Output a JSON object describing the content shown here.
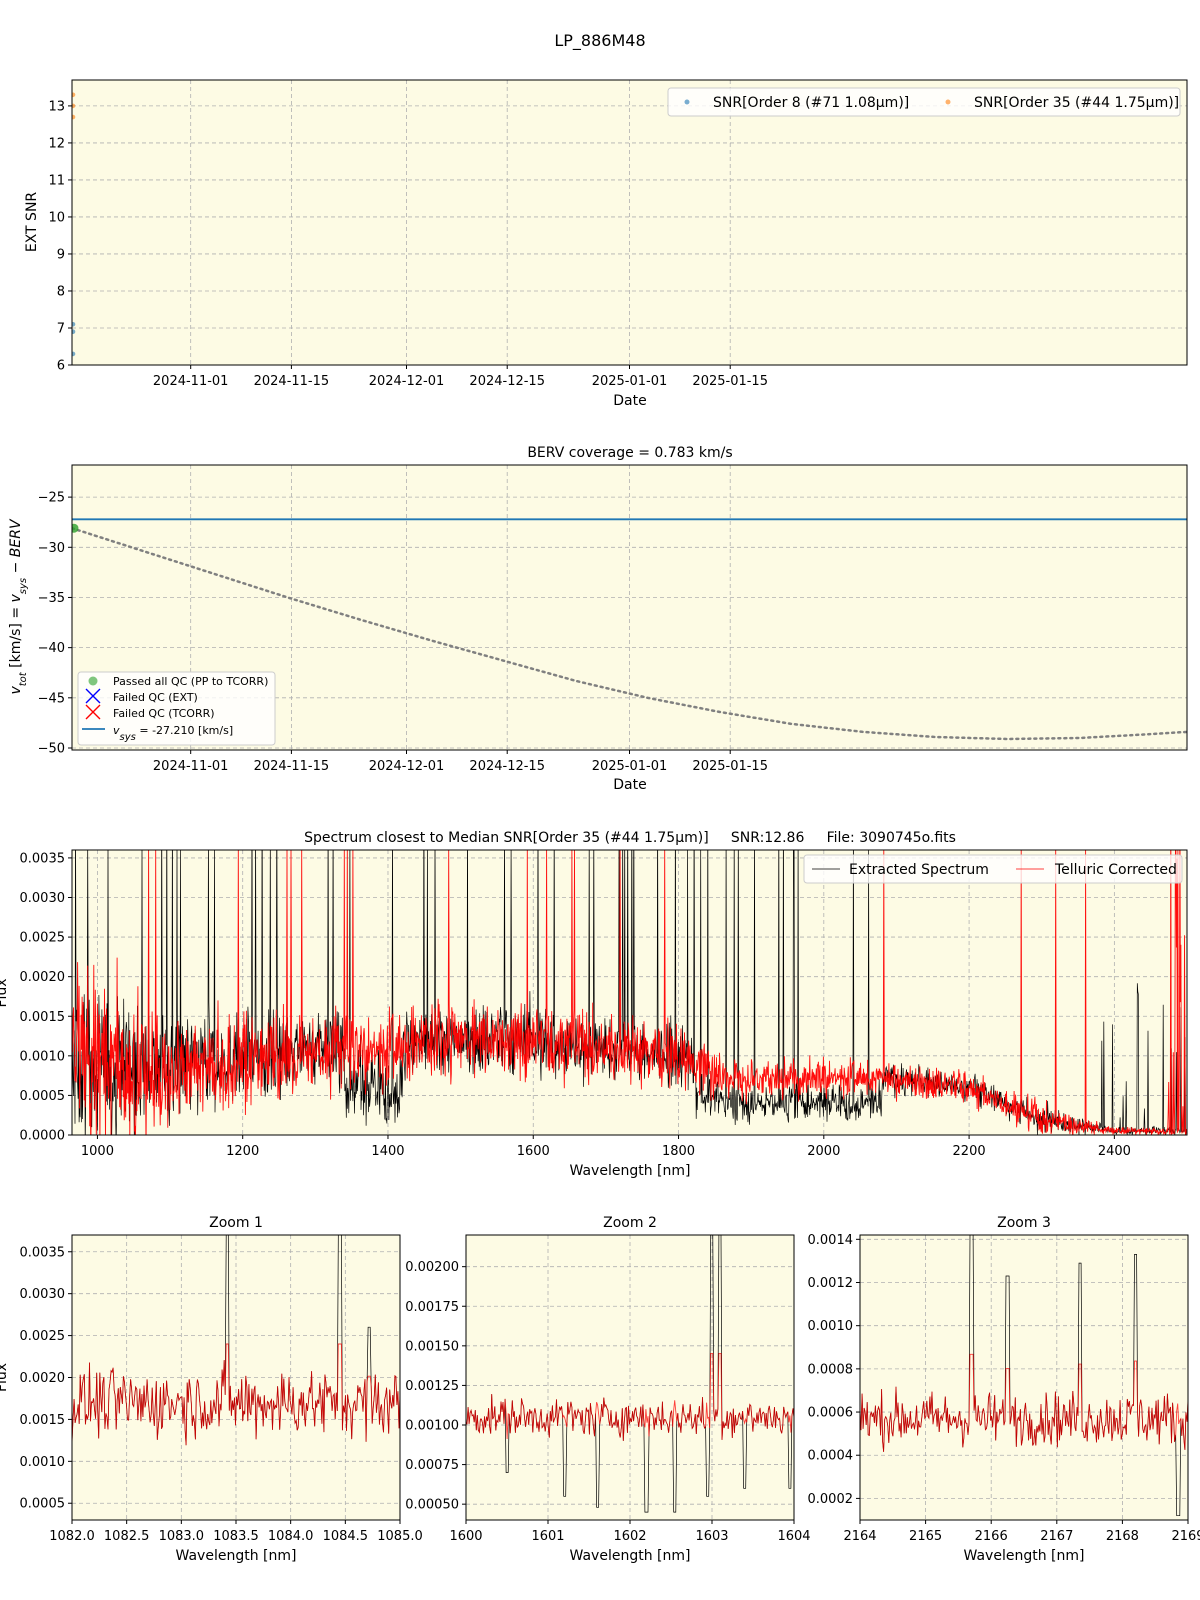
{
  "figure": {
    "suptitle": "LP_886M48"
  },
  "colors": {
    "panel_bg": "#fdfbe4",
    "snr8": "#1f77b4",
    "snr35": "#ff7f0e",
    "vsys_line": "#1f77b4",
    "pass": "#2ca02c",
    "fail_ext": "#0000ff",
    "fail_tcorr": "#ff0000",
    "berv_curve": "#808080",
    "extracted": "#000000",
    "telluric": "#ff0000"
  },
  "chart_data": [
    {
      "id": "snr",
      "type": "scatter",
      "title": "",
      "xlabel": "Date",
      "ylabel": "EXT SNR",
      "xlim_days": [
        0,
        155
      ],
      "ylim": [
        6,
        13.7
      ],
      "yticks": [
        6,
        7,
        8,
        9,
        10,
        11,
        12,
        13
      ],
      "xticks": [
        {
          "day": 16.5,
          "label": "2024-11-01"
        },
        {
          "day": 30.5,
          "label": "2024-11-15"
        },
        {
          "day": 46.5,
          "label": "2024-12-01"
        },
        {
          "day": 60.5,
          "label": "2024-12-15"
        },
        {
          "day": 77.5,
          "label": "2025-01-01"
        },
        {
          "day": 91.5,
          "label": "2025-01-15"
        }
      ],
      "series": [
        {
          "name": "SNR[Order 8 (#71 1.08μm)]",
          "points": [
            [
              0,
              6.3
            ],
            [
              0,
              6.9
            ],
            [
              0,
              7.1
            ]
          ]
        },
        {
          "name": "SNR[Order 35 (#44 1.75μm)]",
          "points": [
            [
              0,
              12.7
            ],
            [
              0,
              13.0
            ],
            [
              0,
              13.3
            ]
          ]
        }
      ]
    },
    {
      "id": "berv",
      "type": "line",
      "title": "BERV coverage = 0.783 km/s",
      "xlabel": "Date",
      "ylabel": "v_tot [km/s] = v_sys − BERV",
      "xlim_days": [
        0,
        155
      ],
      "ylim": [
        -50.2,
        -21.8
      ],
      "yticks": [
        -50,
        -45,
        -40,
        -35,
        -30,
        -25
      ],
      "xticks": [
        {
          "day": 16.5,
          "label": "2024-11-01"
        },
        {
          "day": 30.5,
          "label": "2024-11-15"
        },
        {
          "day": 46.5,
          "label": "2024-12-01"
        },
        {
          "day": 60.5,
          "label": "2024-12-15"
        },
        {
          "day": 77.5,
          "label": "2025-01-01"
        },
        {
          "day": 91.5,
          "label": "2025-01-15"
        }
      ],
      "vsys": -27.21,
      "passed_points": [
        [
          0,
          -28.1
        ]
      ],
      "berv_curve": [
        [
          0,
          -28.1
        ],
        [
          10,
          -30.4
        ],
        [
          20,
          -32.7
        ],
        [
          30,
          -35.0
        ],
        [
          40,
          -37.2
        ],
        [
          50,
          -39.3
        ],
        [
          60,
          -41.3
        ],
        [
          70,
          -43.3
        ],
        [
          80,
          -45.0
        ],
        [
          90,
          -46.4
        ],
        [
          100,
          -47.6
        ],
        [
          110,
          -48.4
        ],
        [
          120,
          -48.9
        ],
        [
          130,
          -49.1
        ],
        [
          140,
          -49.0
        ],
        [
          148,
          -48.7
        ],
        [
          155,
          -48.4
        ]
      ],
      "legend": [
        {
          "marker": "circle",
          "label": "Passed all QC (PP to TCORR)"
        },
        {
          "marker": "x-blue",
          "label": "Failed QC (EXT)"
        },
        {
          "marker": "x-red",
          "label": "Failed QC (TCORR)"
        },
        {
          "marker": "line",
          "label": "v_sys = -27.210 [km/s]"
        }
      ]
    },
    {
      "id": "spectrum",
      "type": "line",
      "title": "Spectrum closest to Median SNR[Order 35 (#44 1.75μm)]     SNR:12.86     File: 3090745o.fits",
      "xlabel": "Wavelength [nm]",
      "ylabel": "Flux",
      "xlim": [
        965,
        2500
      ],
      "ylim": [
        0,
        0.0036
      ],
      "xticks": [
        1000,
        1200,
        1400,
        1600,
        1800,
        2000,
        2200,
        2400
      ],
      "yticks": [
        0.0,
        0.0005,
        0.001,
        0.0015,
        0.002,
        0.0025,
        0.003,
        0.0035
      ],
      "ytick_labels": [
        "0.0000",
        "0.0005",
        "0.0010",
        "0.0015",
        "0.0020",
        "0.0025",
        "0.0030",
        "0.0035"
      ],
      "series": [
        {
          "name": "Extracted Spectrum",
          "color": "#000000"
        },
        {
          "name": "Telluric Corrected",
          "color": "#ff0000"
        }
      ],
      "envelope": [
        [
          965,
          0.00095,
          0.0011
        ],
        [
          1100,
          0.0008,
          0.0007
        ],
        [
          1200,
          0.00095,
          0.0006
        ],
        [
          1300,
          0.0011,
          0.0005
        ],
        [
          1400,
          0.0011,
          0.0005
        ],
        [
          1500,
          0.0012,
          0.0005
        ],
        [
          1600,
          0.0012,
          0.0005
        ],
        [
          1700,
          0.0011,
          0.0004
        ],
        [
          1800,
          0.001,
          0.0004
        ],
        [
          1880,
          0.0007,
          0.00025
        ],
        [
          2000,
          0.00075,
          0.00025
        ],
        [
          2100,
          0.0007,
          0.00022
        ],
        [
          2200,
          0.0006,
          0.0002
        ],
        [
          2300,
          0.0002,
          0.0002
        ],
        [
          2400,
          5e-05,
          5e-05
        ],
        [
          2500,
          5e-05,
          5e-05
        ]
      ]
    },
    {
      "id": "zoom1",
      "type": "line",
      "title": "Zoom 1",
      "xlabel": "Wavelength [nm]",
      "ylabel": "Flux",
      "xlim": [
        1082.0,
        1085.0
      ],
      "ylim": [
        0.0003,
        0.0037
      ],
      "xticks": [
        1082.0,
        1082.5,
        1083.0,
        1083.5,
        1084.0,
        1084.5,
        1085.0
      ],
      "xtick_labels": [
        "1082.0",
        "1082.5",
        "1083.0",
        "1083.5",
        "1084.0",
        "1084.5",
        "1085.0"
      ],
      "yticks": [
        0.0005,
        0.001,
        0.0015,
        0.002,
        0.0025,
        0.003,
        0.0035
      ],
      "ytick_labels": [
        "0.0005",
        "0.0010",
        "0.0015",
        "0.0020",
        "0.0025",
        "0.0030",
        "0.0035"
      ],
      "base": 0.0017,
      "noise": 0.0004,
      "peaks": [
        [
          1083.42,
          0.0037
        ],
        [
          1084.45,
          0.0037
        ],
        [
          1084.72,
          0.0026
        ]
      ],
      "dips": []
    },
    {
      "id": "zoom2",
      "type": "line",
      "title": "Zoom 2",
      "xlabel": "Wavelength [nm]",
      "ylabel": "",
      "xlim": [
        1600,
        1604
      ],
      "ylim": [
        0.0004,
        0.0022
      ],
      "xticks": [
        1600,
        1601,
        1602,
        1603,
        1604
      ],
      "xtick_labels": [
        "1600",
        "1601",
        "1602",
        "1603",
        "1604"
      ],
      "yticks": [
        0.0005,
        0.00075,
        0.001,
        0.00125,
        0.0015,
        0.00175,
        0.002
      ],
      "ytick_labels": [
        "0.00050",
        "0.00075",
        "0.00100",
        "0.00125",
        "0.00150",
        "0.00175",
        "0.00200"
      ],
      "base": 0.00105,
      "noise": 0.00012,
      "peaks": [
        [
          1603.0,
          0.0022
        ],
        [
          1603.1,
          0.0022
        ]
      ],
      "dips": [
        [
          1600.5,
          0.0007
        ],
        [
          1601.2,
          0.00055
        ],
        [
          1601.6,
          0.00048
        ],
        [
          1602.2,
          0.00045
        ],
        [
          1602.55,
          0.00045
        ],
        [
          1602.95,
          0.00055
        ],
        [
          1603.4,
          0.0006
        ],
        [
          1603.95,
          0.0006
        ]
      ]
    },
    {
      "id": "zoom3",
      "type": "line",
      "title": "Zoom 3",
      "xlabel": "Wavelength [nm]",
      "ylabel": "",
      "xlim": [
        2164,
        2169
      ],
      "ylim": [
        0.0001,
        0.00142
      ],
      "xticks": [
        2164,
        2165,
        2166,
        2167,
        2168,
        2169
      ],
      "xtick_labels": [
        "2164",
        "2165",
        "2166",
        "2167",
        "2168",
        "2169"
      ],
      "yticks": [
        0.0002,
        0.0004,
        0.0006,
        0.0008,
        0.001,
        0.0012,
        0.0014
      ],
      "ytick_labels": [
        "0.0002",
        "0.0004",
        "0.0006",
        "0.0008",
        "0.0010",
        "0.0012",
        "0.0014"
      ],
      "base": 0.00057,
      "noise": 0.00012,
      "peaks": [
        [
          2165.7,
          0.00142
        ],
        [
          2166.25,
          0.00123
        ],
        [
          2167.35,
          0.00129
        ],
        [
          2168.2,
          0.00133
        ]
      ],
      "dips": [
        [
          2168.85,
          0.00012
        ]
      ]
    }
  ]
}
